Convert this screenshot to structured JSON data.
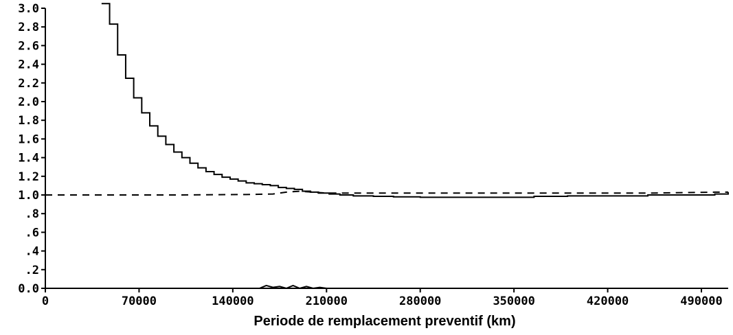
{
  "chart_data": {
    "type": "line",
    "title": "",
    "xlabel": "Periode de remplacement preventif (km)",
    "ylabel": "",
    "xlim": [
      0,
      510000
    ],
    "ylim": [
      0,
      3.0
    ],
    "grid": false,
    "legend": "none",
    "x_ticks": [
      0,
      70000,
      140000,
      210000,
      280000,
      350000,
      420000,
      490000
    ],
    "x_tick_labels": [
      "0",
      "70000",
      "140000",
      "210000",
      "280000",
      "350000",
      "420000",
      "490000"
    ],
    "y_ticks": [
      0,
      0.2,
      0.4,
      0.6,
      0.8,
      1.0,
      1.2,
      1.4,
      1.6,
      1.8,
      2.0,
      2.2,
      2.4,
      2.6,
      2.8,
      3.0
    ],
    "y_tick_labels": [
      "0.0",
      ".2",
      ".4",
      ".6",
      ".8",
      "1.0",
      "1.2",
      "1.4",
      "1.6",
      "1.8",
      "2.0",
      "2.2",
      "2.4",
      "2.6",
      "2.8",
      "3.0"
    ],
    "series": [
      {
        "style": "solid-step",
        "color": "#000000",
        "x": [
          42000,
          48000,
          54000,
          60000,
          66000,
          72000,
          78000,
          84000,
          90000,
          96000,
          102000,
          108000,
          114000,
          120000,
          126000,
          132000,
          138000,
          144000,
          150000,
          156000,
          162000,
          168000,
          174000,
          180000,
          186000,
          192000,
          198000,
          204000,
          212000,
          220000,
          230000,
          245000,
          260000,
          280000,
          300000,
          320000,
          345000,
          365000,
          390000,
          420000,
          450000,
          480000,
          500000,
          510000
        ],
        "y": [
          3.05,
          2.83,
          2.5,
          2.25,
          2.04,
          1.88,
          1.74,
          1.63,
          1.54,
          1.46,
          1.4,
          1.34,
          1.29,
          1.25,
          1.22,
          1.19,
          1.17,
          1.15,
          1.13,
          1.12,
          1.11,
          1.1,
          1.08,
          1.07,
          1.06,
          1.04,
          1.03,
          1.02,
          1.01,
          1.0,
          0.99,
          0.985,
          0.98,
          0.975,
          0.975,
          0.975,
          0.975,
          0.985,
          0.99,
          0.99,
          1.0,
          1.0,
          1.01,
          1.03
        ]
      },
      {
        "style": "dashed",
        "color": "#000000",
        "x": [
          0,
          50000,
          100000,
          150000,
          170000,
          180000,
          190000,
          200000,
          210000,
          250000,
          300000,
          350000,
          400000,
          450000,
          500000,
          510000
        ],
        "y": [
          1.0,
          1.0,
          1.0,
          1.005,
          1.01,
          1.03,
          1.04,
          1.03,
          1.02,
          1.02,
          1.02,
          1.02,
          1.02,
          1.02,
          1.03,
          1.03
        ]
      },
      {
        "style": "solid",
        "color": "#000000",
        "x": [
          0,
          160000,
          165000,
          170000,
          175000,
          180000,
          185000,
          190000,
          195000,
          200000,
          205000,
          210000,
          510000
        ],
        "y": [
          0.0,
          0.0,
          0.03,
          0.01,
          0.02,
          0.0,
          0.03,
          0.0,
          0.02,
          0.0,
          0.01,
          0.0,
          0.0
        ]
      }
    ]
  }
}
